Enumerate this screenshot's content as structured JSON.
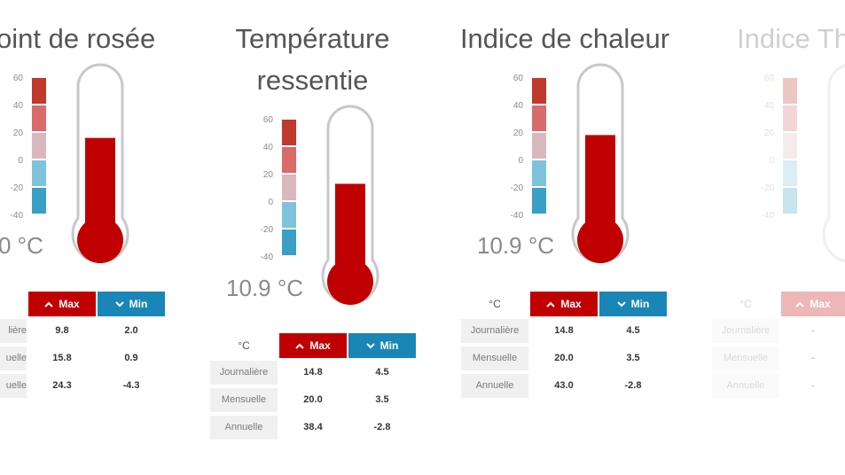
{
  "scale_ticks": [
    "60",
    "40",
    "20",
    "0",
    "-20",
    "-40"
  ],
  "colors": {
    "max": "#c00000",
    "min": "#1a86b7",
    "mercury": "#c00000"
  },
  "panels": [
    {
      "title_lines": [
        "oint de rosée"
      ],
      "readout": "0 °C",
      "fill_fraction": 0.64,
      "unit_label": "",
      "max_label": "Max",
      "min_label": "Min",
      "rows": [
        {
          "label": "lière",
          "max": "9.8",
          "min": "2.0"
        },
        {
          "label": "uelle",
          "max": "15.8",
          "min": "0.9"
        },
        {
          "label": "uelle",
          "max": "24.3",
          "min": "-4.3"
        }
      ]
    },
    {
      "title_lines": [
        "Température",
        "ressentie"
      ],
      "readout": "10.9 °C",
      "fill_fraction": 0.61,
      "unit_label": "°C",
      "max_label": "Max",
      "min_label": "Min",
      "rows": [
        {
          "label": "Journalière",
          "max": "14.8",
          "min": "4.5"
        },
        {
          "label": "Mensuelle",
          "max": "20.0",
          "min": "3.5"
        },
        {
          "label": "Annuelle",
          "max": "38.4",
          "min": "-2.8"
        }
      ]
    },
    {
      "title_lines": [
        "Indice de chaleur"
      ],
      "readout": "10.9 °C",
      "fill_fraction": 0.66,
      "unit_label": "°C",
      "max_label": "Max",
      "min_label": "Min",
      "rows": [
        {
          "label": "Journalière",
          "max": "14.8",
          "min": "4.5"
        },
        {
          "label": "Mensuelle",
          "max": "20.0",
          "min": "3.5"
        },
        {
          "label": "Annuelle",
          "max": "43.0",
          "min": "-2.8"
        }
      ]
    },
    {
      "title_lines": [
        "Indice Th"
      ],
      "readout": "",
      "fill_fraction": 0,
      "unit_label": "°C",
      "max_label": "Max",
      "min_label": "",
      "rows": [
        {
          "label": "Journalière",
          "max": "-",
          "min": ""
        },
        {
          "label": "Mensuelle",
          "max": "-",
          "min": ""
        },
        {
          "label": "Annuelle",
          "max": "-",
          "min": ""
        }
      ]
    }
  ]
}
